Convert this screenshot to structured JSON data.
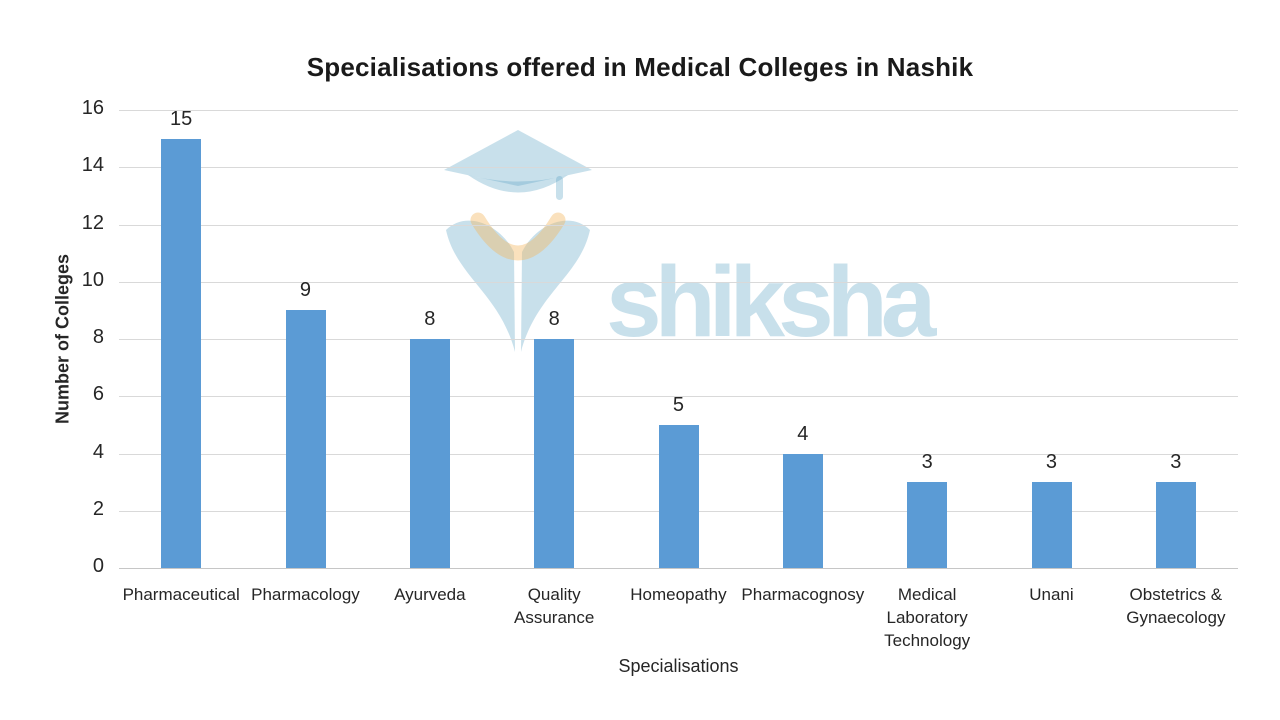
{
  "page": {
    "background_color": "#ffffff"
  },
  "watermark": {
    "text": "shiksha",
    "logo": "shiksha-graduation-cap-logo",
    "blue_color": "#cfe4ee",
    "accent_color": "#fbe6c8"
  },
  "chart_data": {
    "type": "bar",
    "title": "Specialisations offered in Medical Colleges in Nashik",
    "categories": [
      "Pharmaceutical",
      "Pharmacology",
      "Ayurveda",
      "Quality Assurance",
      "Homeopathy",
      "Pharmacognosy",
      "Medical Laboratory Technology",
      "Unani",
      "Obstetrics & Gynaecology"
    ],
    "values": [
      15,
      9,
      8,
      8,
      5,
      4,
      3,
      3,
      3
    ],
    "data_labels": [
      15,
      9,
      8,
      8,
      5,
      4,
      3,
      3,
      3
    ],
    "xlabel": "Specialisations",
    "ylabel": "Number of Colleges",
    "ylim": [
      0,
      16
    ],
    "yticks": [
      0,
      2,
      4,
      6,
      8,
      10,
      12,
      14,
      16
    ],
    "grid": "horizontal",
    "legend": "none",
    "bar_color": "#5B9BD5",
    "gridline_color": "#d9d9d9",
    "axis_line_color": "#c6c6c6",
    "text_color": "#262626"
  }
}
